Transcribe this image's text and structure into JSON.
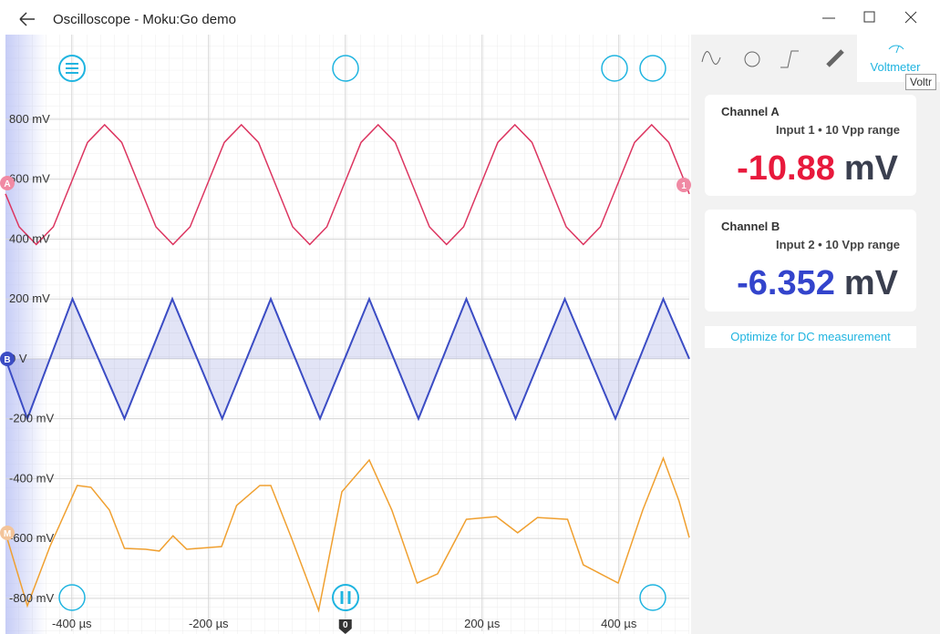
{
  "window": {
    "title": "Oscilloscope - Moku:Go demo"
  },
  "chart_data": {
    "type": "line",
    "xlim": [
      -497,
      503
    ],
    "ylim": [
      -910,
      1083
    ],
    "xticks": [
      {
        "value": -400,
        "label": "-400 µs"
      },
      {
        "value": -200,
        "label": "-200 µs"
      },
      0,
      {
        "value": 200,
        "label": "200 µs"
      },
      {
        "value": 400,
        "label": "400 µs"
      }
    ],
    "yticks": [
      {
        "value": 800,
        "label": "800 mV"
      },
      {
        "value": 600,
        "label": "600 mV"
      },
      {
        "value": 400,
        "label": "400 mV"
      },
      {
        "value": 200,
        "label": "200 mV"
      },
      {
        "value": 0,
        "label": "0 V"
      },
      {
        "value": -200,
        "label": "-200 mV"
      },
      {
        "value": -400,
        "label": "-400 mV"
      },
      {
        "value": -600,
        "label": "-600 mV"
      },
      {
        "value": -800,
        "label": "-800 mV"
      }
    ],
    "grid": true,
    "series": [
      {
        "color": "#dc3560",
        "x": [
          -497,
          -477,
          -452,
          -427,
          -402,
          -377,
          -352,
          -327,
          -302,
          -277,
          -252,
          -227,
          -202,
          -177,
          -152,
          -127,
          -102,
          -77,
          -52,
          -27,
          -2,
          23,
          48,
          73,
          98,
          123,
          148,
          173,
          198,
          223,
          248,
          273,
          298,
          323,
          348,
          373,
          398,
          423,
          448,
          473,
          498,
          503
        ],
        "values": [
          551,
          441,
          382,
          441,
          582,
          723,
          782,
          723,
          582,
          441,
          382,
          441,
          582,
          723,
          782,
          723,
          582,
          441,
          382,
          441,
          582,
          723,
          782,
          723,
          582,
          441,
          382,
          441,
          582,
          723,
          782,
          723,
          582,
          441,
          382,
          441,
          582,
          723,
          782,
          723,
          582,
          551
        ]
      },
      {
        "color": "#3b4cc4",
        "fill": true,
        "x": [
          -497,
          -465,
          -399,
          -323,
          -253,
          -180,
          -109,
          -37,
          35,
          107,
          177,
          249,
          321,
          395,
          465,
          503
        ],
        "values": [
          0,
          -200,
          200,
          -200,
          200,
          -200,
          200,
          -200,
          200,
          -200,
          200,
          -200,
          200,
          -200,
          200,
          0
        ]
      },
      {
        "color": "#f0a030",
        "x": [
          -497,
          -465,
          -432,
          -392,
          -372,
          -345,
          -323,
          -292,
          -272,
          -252,
          -232,
          -181,
          -159,
          -125,
          -109,
          -79,
          -39,
          -5,
          35,
          68,
          105,
          135,
          177,
          221,
          252,
          281,
          325,
          348,
          399,
          435,
          465,
          488,
          503
        ],
        "values": [
          -581,
          -825,
          -627,
          -423,
          -429,
          -505,
          -633,
          -636,
          -642,
          -591,
          -636,
          -627,
          -490,
          -423,
          -423,
          -597,
          -840,
          -444,
          -338,
          -505,
          -749,
          -718,
          -536,
          -527,
          -581,
          -530,
          -536,
          -688,
          -749,
          -505,
          -332,
          -475,
          -597
        ]
      }
    ]
  },
  "channel_markers": {
    "a": "A",
    "b": "B",
    "math": "M",
    "input": "1"
  },
  "tabs": {
    "active": "Voltmeter",
    "tooltip": "Voltr"
  },
  "channels": [
    {
      "name": "Channel A",
      "input": "Input 1 • 10 Vpp range",
      "value": "-10.88",
      "unit": "mV"
    },
    {
      "name": "Channel B",
      "input": "Input 2 • 10 Vpp range",
      "value": "-6.352",
      "unit": "mV"
    }
  ],
  "optimize": "Optimize for DC measurement"
}
